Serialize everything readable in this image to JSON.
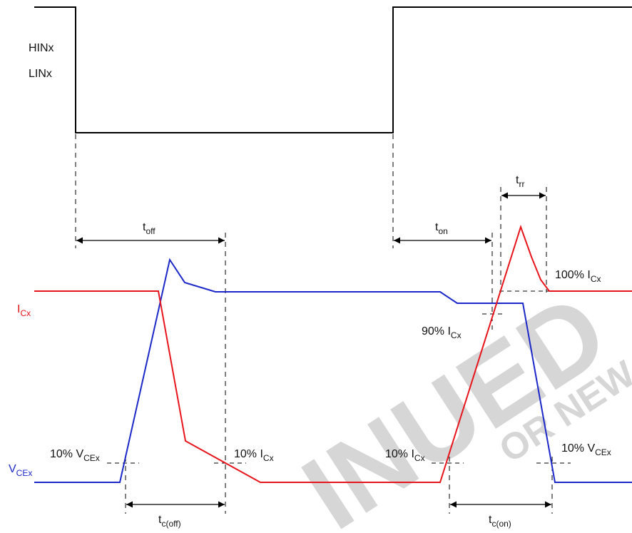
{
  "colors": {
    "input": "#000000",
    "current": "#e8141c",
    "voltage": "#1c28c8",
    "watermark": "#d2d2d2"
  },
  "input_signal": {
    "label_line1": "HINx",
    "label_line2": "LINx"
  },
  "signals": {
    "ic": {
      "main": "I",
      "sub": "Cx"
    },
    "vce": {
      "main": "V",
      "sub": "CEx"
    }
  },
  "timings": {
    "toff": {
      "main": "t",
      "sub": "off"
    },
    "ton": {
      "main": "t",
      "sub": "on"
    },
    "trr": {
      "main": "t",
      "sub": "rr"
    },
    "tc_off": {
      "main": "t",
      "sub": "c(off)"
    },
    "tc_on": {
      "main": "t",
      "sub": "c(on)"
    }
  },
  "thresholds": {
    "vce10_left": {
      "main": "10% V",
      "sub": "CEx"
    },
    "ic10_left": {
      "main": "10% I",
      "sub": "Cx"
    },
    "ic10_right": {
      "main": "10% I",
      "sub": "Cx"
    },
    "vce10_right": {
      "main": "10% V",
      "sub": "CEx"
    },
    "ic90": {
      "main": "90% I",
      "sub": "Cx"
    },
    "ic100": {
      "main": "100% I",
      "sub": "Cx"
    }
  },
  "watermark": {
    "big": "INUED",
    "small": "OR NEW DE"
  }
}
